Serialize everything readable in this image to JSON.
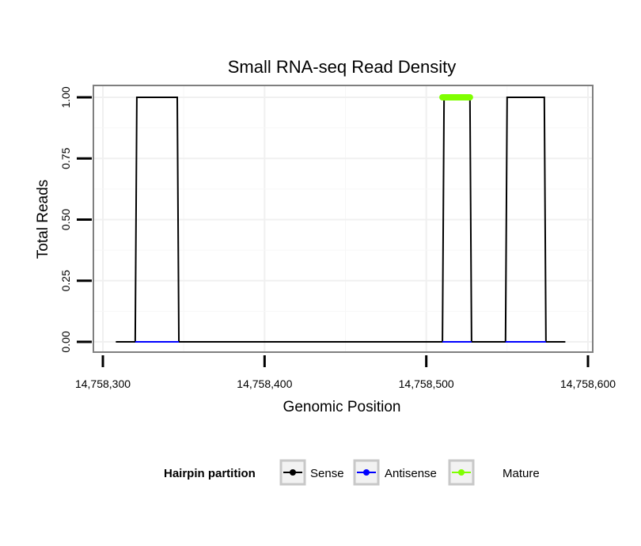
{
  "chart_data": {
    "type": "line",
    "title": "Small RNA-seq Read Density",
    "xlabel": "Genomic Position",
    "ylabel": "Total Reads",
    "xlim": [
      14758300,
      14758600
    ],
    "ylim": [
      0,
      1
    ],
    "x_ticks": [
      14758300,
      14758400,
      14758500,
      14758600
    ],
    "x_tick_labels": [
      "14,758,300",
      "14,758,400",
      "14,758,500",
      "14,758,600"
    ],
    "y_ticks": [
      0,
      0.25,
      0.5,
      0.75,
      1
    ],
    "y_tick_labels": [
      "0.00",
      "0.25",
      "0.50",
      "0.75",
      "1.00"
    ],
    "grid": true,
    "legend": {
      "title": "Hairpin partition",
      "position": "bottom",
      "entries": [
        "Sense",
        "Antisense",
        "Mature"
      ]
    },
    "series": [
      {
        "name": "Sense",
        "color": "#000000",
        "x": [
          14758308,
          14758320,
          14758321,
          14758346,
          14758347,
          14758510,
          14758511,
          14758527,
          14758528,
          14758549,
          14758550,
          14758573,
          14758574,
          14758586
        ],
        "y": [
          0,
          0,
          1,
          1,
          0,
          0,
          1,
          1,
          0,
          0,
          1,
          1,
          0,
          0
        ]
      },
      {
        "name": "Antisense",
        "color": "#0000ff",
        "segments": [
          {
            "x": [
              14758320,
              14758347
            ],
            "y": [
              0,
              0
            ]
          },
          {
            "x": [
              14758510,
              14758528
            ],
            "y": [
              0,
              0
            ]
          },
          {
            "x": [
              14758549,
              14758574
            ],
            "y": [
              0,
              0
            ]
          }
        ]
      },
      {
        "name": "Mature",
        "color": "#7fff00",
        "segments": [
          {
            "x": [
              14758510,
              14758527
            ],
            "y": [
              1,
              1
            ]
          }
        ]
      }
    ]
  }
}
